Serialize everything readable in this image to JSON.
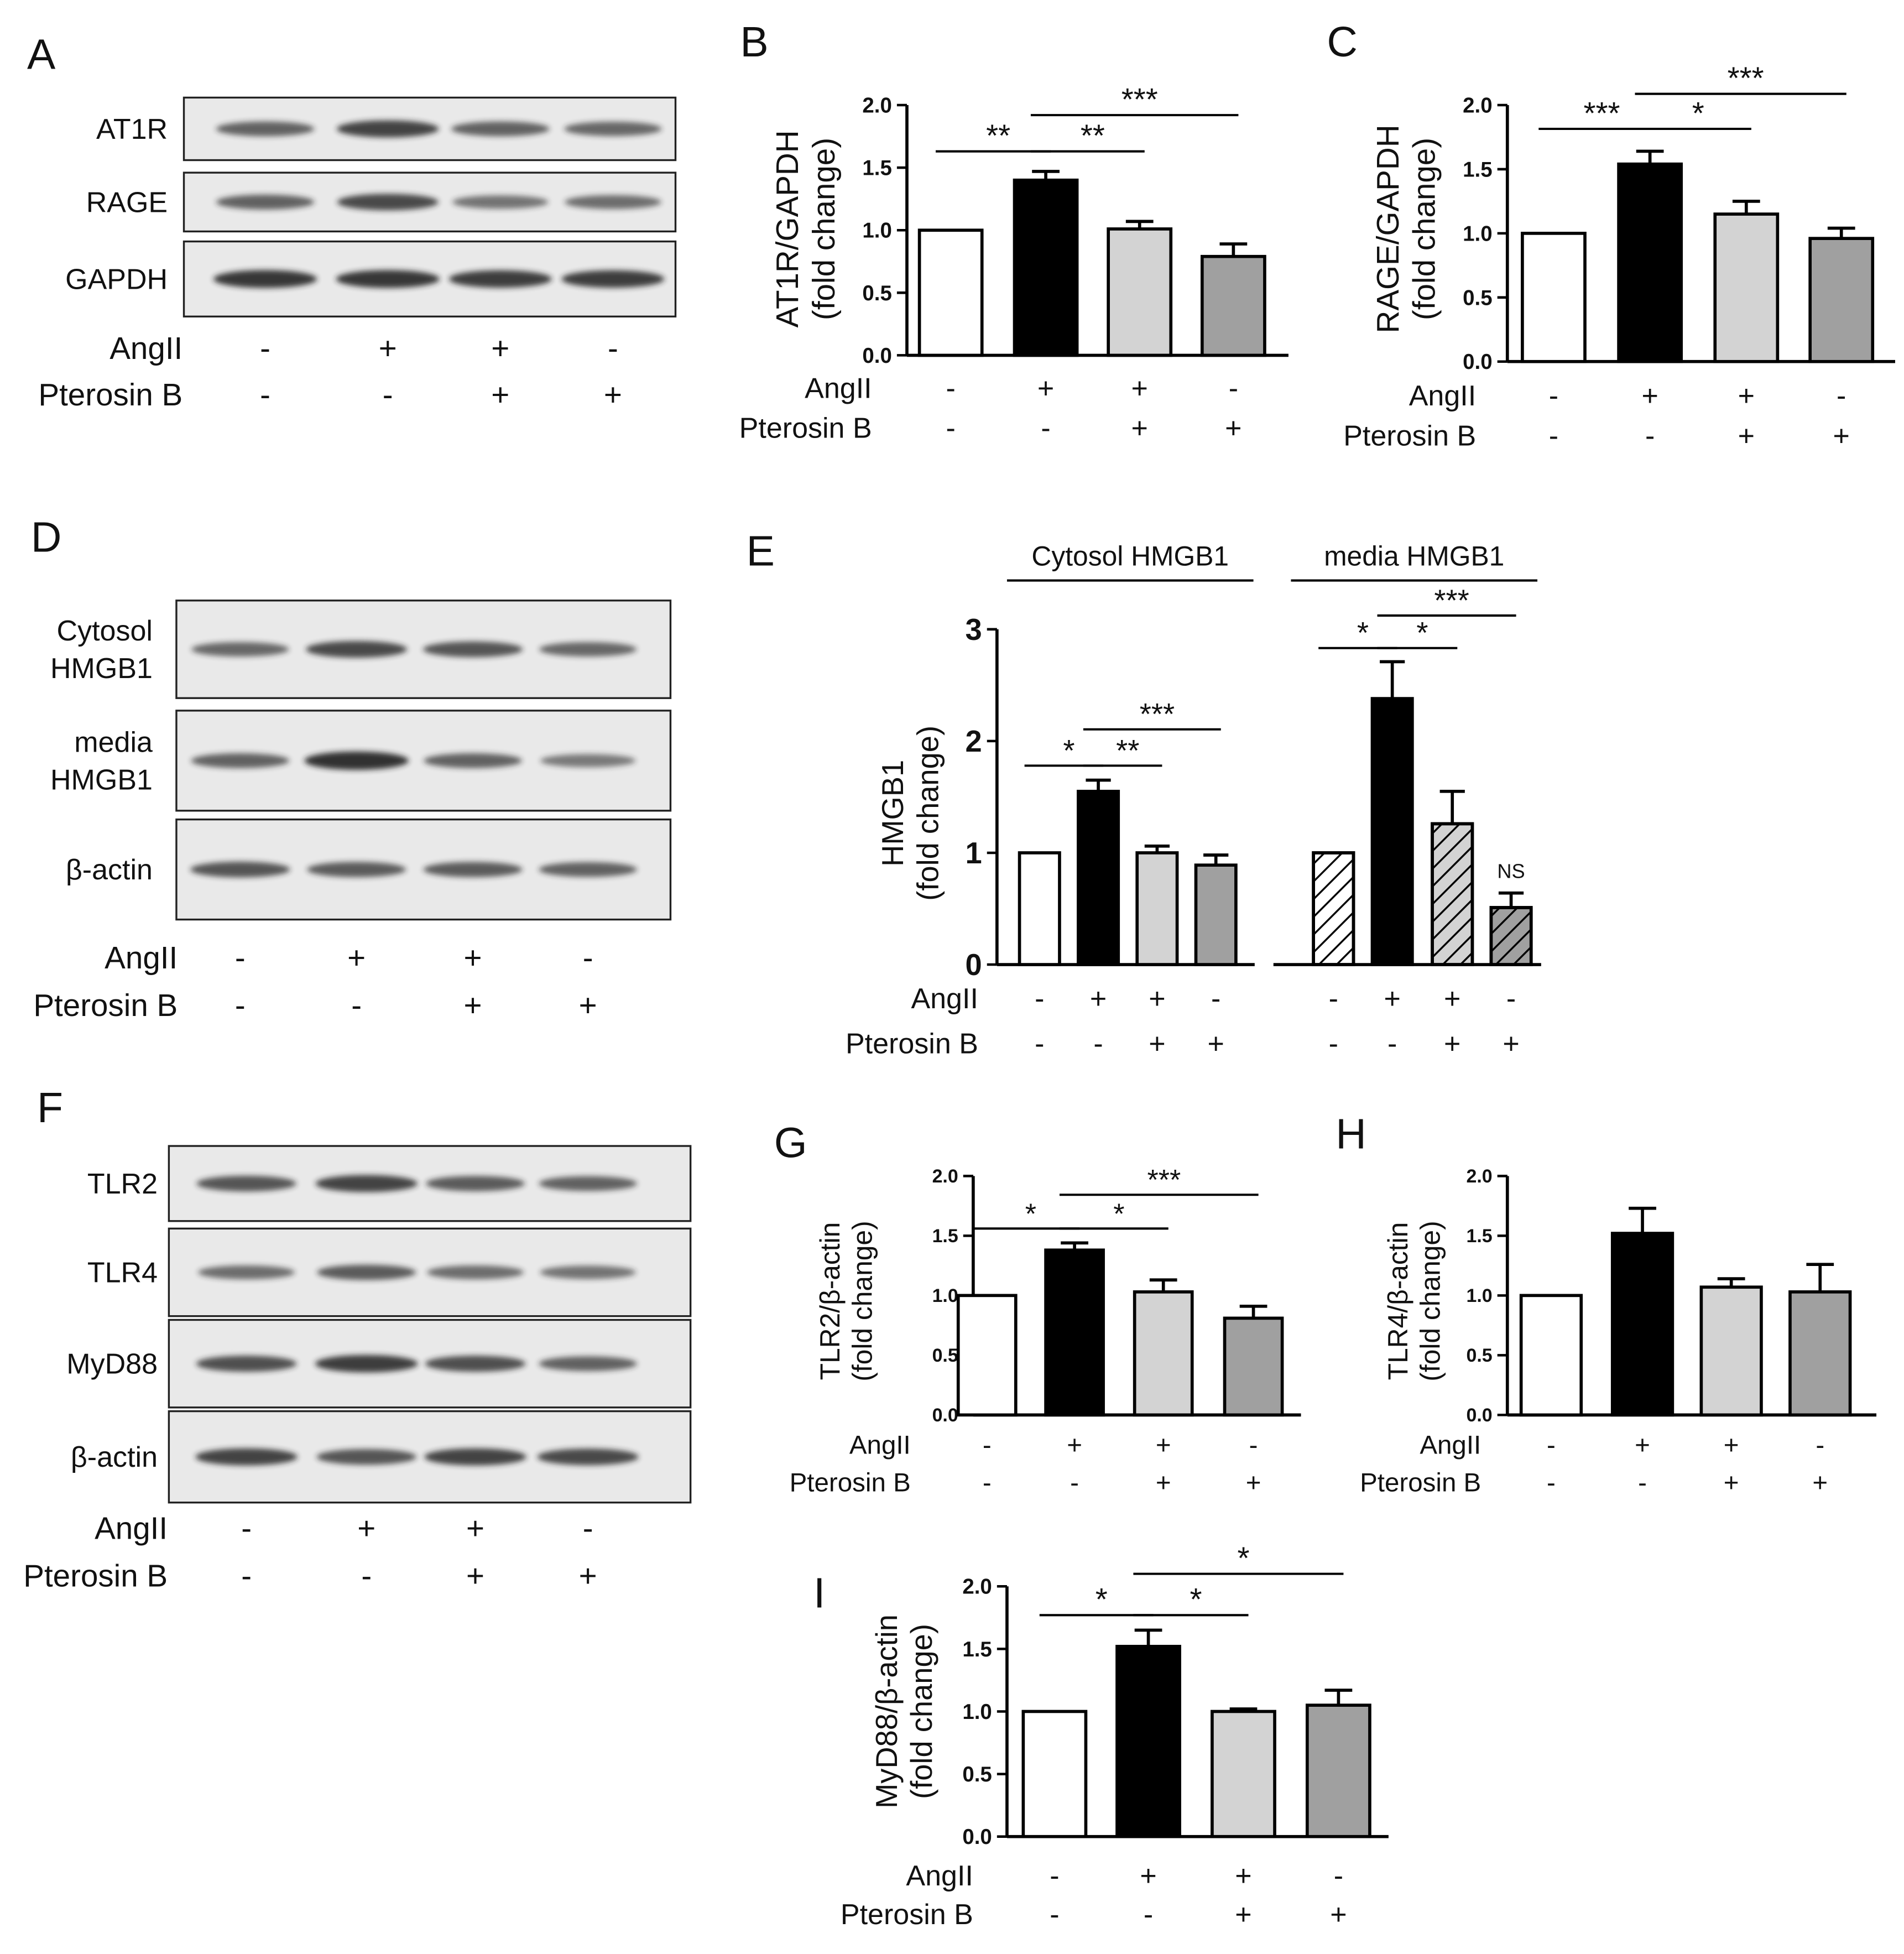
{
  "treatments": {
    "angii_label": "AngII",
    "pterosin_label": "Pterosin B",
    "angii": [
      "-",
      "+",
      "+",
      "-"
    ],
    "pterosin": [
      "-",
      "-",
      "+",
      "+"
    ]
  },
  "colors": {
    "control": "#ffffff",
    "angii": "#000000",
    "combo": "#d3d3d3",
    "pterosin": "#a0a0a0",
    "blot_bg": "#e9e9e9",
    "band": "#202020"
  },
  "panels": {
    "A": {
      "letter": "A",
      "rows": [
        "AT1R",
        "RAGE",
        "GAPDH"
      ]
    },
    "D": {
      "letter": "D",
      "rows": [
        "Cytosol\nHMGB1",
        "media\nHMGB1",
        "β-actin"
      ]
    },
    "F": {
      "letter": "F",
      "rows": [
        "TLR2",
        "TLR4",
        "MyD88",
        "β-actin"
      ]
    }
  },
  "chart_data": [
    {
      "id": "B",
      "letter": "B",
      "type": "bar",
      "ylabel": [
        "AT1R/GAPDH",
        "(fold change)"
      ],
      "ylim": [
        0,
        2.0
      ],
      "yticks": [
        "0.0",
        "0.5",
        "1.0",
        "1.5",
        "2.0"
      ],
      "values": [
        1.0,
        1.4,
        1.01,
        0.79
      ],
      "errors": [
        0,
        0.07,
        0.06,
        0.1
      ],
      "significance": [
        {
          "from": 0,
          "to": 1,
          "label": "**"
        },
        {
          "from": 1,
          "to": 2,
          "label": "**"
        },
        {
          "from": 1,
          "to": 3,
          "label": "***"
        }
      ]
    },
    {
      "id": "C",
      "letter": "C",
      "type": "bar",
      "ylabel": [
        "RAGE/GAPDH",
        "(fold change)"
      ],
      "ylim": [
        0,
        2.0
      ],
      "yticks": [
        "0.0",
        "0.5",
        "1.0",
        "1.5",
        "2.0"
      ],
      "values": [
        1.0,
        1.54,
        1.15,
        0.96
      ],
      "errors": [
        0,
        0.1,
        0.1,
        0.08
      ],
      "significance": [
        {
          "from": 0,
          "to": 1,
          "label": "***"
        },
        {
          "from": 1,
          "to": 2,
          "label": "*"
        },
        {
          "from": 1,
          "to": 3,
          "label": "***"
        }
      ]
    },
    {
      "id": "E",
      "letter": "E",
      "type": "bar",
      "ylabel": [
        "HMGB1",
        "(fold change)"
      ],
      "ylim": [
        0,
        3
      ],
      "yticks": [
        "0",
        "1",
        "2",
        "3"
      ],
      "groups": [
        {
          "name": "Cytosol HMGB1",
          "values": [
            1.0,
            1.55,
            1.0,
            0.89
          ],
          "errors": [
            0,
            0.1,
            0.06,
            0.09
          ],
          "significance": [
            {
              "from": 0,
              "to": 1,
              "label": "*"
            },
            {
              "from": 1,
              "to": 2,
              "label": "**"
            },
            {
              "from": 1,
              "to": 3,
              "label": "***"
            }
          ]
        },
        {
          "name": "media HMGB1",
          "values": [
            1.0,
            2.38,
            1.26,
            0.51
          ],
          "errors": [
            0,
            0.33,
            0.29,
            0.13
          ],
          "significance": [
            {
              "from": 0,
              "to": 1,
              "label": "*"
            },
            {
              "from": 1,
              "to": 2,
              "label": "*"
            },
            {
              "from": 1,
              "to": 3,
              "label": "***"
            }
          ],
          "annotation": "NS"
        }
      ]
    },
    {
      "id": "G",
      "letter": "G",
      "type": "bar",
      "ylabel": [
        "TLR2/β-actin",
        "(fold change)"
      ],
      "ylim": [
        0,
        2.0
      ],
      "yticks": [
        "0.0",
        "0.5",
        "1.0",
        "1.5",
        "2.0"
      ],
      "values": [
        1.0,
        1.38,
        1.03,
        0.81
      ],
      "errors": [
        0,
        0.06,
        0.1,
        0.1
      ],
      "significance": [
        {
          "from": 0,
          "to": 1,
          "label": "*"
        },
        {
          "from": 1,
          "to": 2,
          "label": "*"
        },
        {
          "from": 1,
          "to": 3,
          "label": "***"
        }
      ]
    },
    {
      "id": "H",
      "letter": "H",
      "type": "bar",
      "ylabel": [
        "TLR4/β-actin",
        "(fold change)"
      ],
      "ylim": [
        0,
        2.0
      ],
      "yticks": [
        "0.0",
        "0.5",
        "1.0",
        "1.5",
        "2.0"
      ],
      "values": [
        1.0,
        1.52,
        1.07,
        1.03
      ],
      "errors": [
        0,
        0.21,
        0.07,
        0.23
      ],
      "significance": []
    },
    {
      "id": "I",
      "letter": "I",
      "type": "bar",
      "ylabel": [
        "MyD88/β-actin",
        "(fold change)"
      ],
      "ylim": [
        0,
        2.0
      ],
      "yticks": [
        "0.0",
        "0.5",
        "1.0",
        "1.5",
        "2.0"
      ],
      "values": [
        1.0,
        1.52,
        1.0,
        1.05
      ],
      "errors": [
        0,
        0.13,
        0.02,
        0.12
      ],
      "significance": [
        {
          "from": 0,
          "to": 1,
          "label": "*"
        },
        {
          "from": 1,
          "to": 2,
          "label": "*"
        },
        {
          "from": 1,
          "to": 3,
          "label": "*"
        }
      ]
    }
  ]
}
